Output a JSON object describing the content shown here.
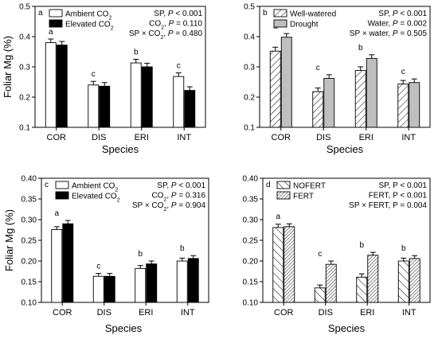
{
  "chart_data": [
    {
      "type": "bar",
      "panel": "a",
      "ylabel": "Foliar Mg (%)",
      "xlabel": "Species",
      "ylim": [
        0.1,
        0.5
      ],
      "yticks": [
        "0.1",
        "0.2",
        "0.3",
        "0.4",
        "0.5"
      ],
      "categories": [
        "COR",
        "DIS",
        "ERI",
        "INT"
      ],
      "series": [
        {
          "name": "Ambient CO",
          "sub": "2",
          "fill": "white",
          "values": [
            0.38,
            0.24,
            0.313,
            0.268
          ],
          "errors": [
            0.012,
            0.012,
            0.012,
            0.012
          ]
        },
        {
          "name": "Elevated CO",
          "sub": "2",
          "fill": "black",
          "values": [
            0.372,
            0.236,
            0.3,
            0.222
          ],
          "errors": [
            0.012,
            0.012,
            0.012,
            0.012
          ]
        }
      ],
      "letters": [
        "a",
        "c",
        "b",
        "c"
      ],
      "legend_position": "top-left",
      "stats": [
        {
          "pre": "SP, ",
          "it": "P",
          "post": " < 0.001"
        },
        {
          "pre": "CO",
          "sub": "2",
          "pre2": ", ",
          "it": "P",
          "post": " = 0.110"
        },
        {
          "pre": "SP × CO",
          "sub": "2",
          "pre2": ", ",
          "it": "P",
          "post": " = 0.480"
        }
      ]
    },
    {
      "type": "bar",
      "panel": "b",
      "ylabel": "",
      "xlabel": "Species",
      "ylim": [
        0.1,
        0.5
      ],
      "yticks": [
        "0.1",
        "0.2",
        "0.3",
        "0.4",
        "0.5"
      ],
      "categories": [
        "COR",
        "DIS",
        "ERI",
        "INT"
      ],
      "series": [
        {
          "name": "Well-watered",
          "sub": "",
          "fill": "hatch",
          "values": [
            0.352,
            0.218,
            0.288,
            0.243
          ],
          "errors": [
            0.013,
            0.012,
            0.012,
            0.012
          ]
        },
        {
          "name": "Drought",
          "sub": "",
          "fill": "gray",
          "values": [
            0.398,
            0.262,
            0.328,
            0.248
          ],
          "errors": [
            0.012,
            0.012,
            0.012,
            0.012
          ]
        }
      ],
      "letters": [
        "a",
        "c",
        "b",
        "c"
      ],
      "legend_position": "top-left",
      "stats": [
        {
          "pre": "SP, ",
          "it": "P",
          "post": " < 0.001"
        },
        {
          "pre": "Water, ",
          "it": "P",
          "post": " = 0.002"
        },
        {
          "pre": "SP × water, ",
          "it": "P",
          "post": " = 0.505"
        }
      ]
    },
    {
      "type": "bar",
      "panel": "c",
      "ylabel": "Foliar Mg (%)",
      "xlabel": "Species",
      "ylim": [
        0.1,
        0.4
      ],
      "yticks": [
        "0.10",
        "0.15",
        "0.20",
        "0.25",
        "0.30",
        "0.35",
        "0.40"
      ],
      "categories": [
        "COR",
        "DIS",
        "ERI",
        "INT"
      ],
      "series": [
        {
          "name": "Ambient CO",
          "sub": "2",
          "fill": "white",
          "values": [
            0.276,
            0.163,
            0.182,
            0.2
          ],
          "errors": [
            0.007,
            0.007,
            0.007,
            0.007
          ]
        },
        {
          "name": "Elevated CO",
          "sub": "2",
          "fill": "black",
          "values": [
            0.29,
            0.163,
            0.193,
            0.206
          ],
          "errors": [
            0.008,
            0.007,
            0.007,
            0.007
          ]
        }
      ],
      "letters": [
        "a",
        "c",
        "b",
        "b"
      ],
      "legend_position": "top-left",
      "stats": [
        {
          "pre": "SP, ",
          "it": "P",
          "post": " < 0.001"
        },
        {
          "pre": "CO",
          "sub": "2",
          "pre2": ", ",
          "it": "P",
          "post": " = 0.316"
        },
        {
          "pre": "SP × CO",
          "sub": "2",
          "pre2": ", ",
          "it": "P",
          "post": " = 0.904"
        }
      ]
    },
    {
      "type": "bar",
      "panel": "d",
      "ylabel": "",
      "xlabel": "Species",
      "ylim": [
        0.1,
        0.4
      ],
      "yticks": [
        "0.10",
        "0.15",
        "0.20",
        "0.25",
        "0.30",
        "0.35",
        "0.40"
      ],
      "categories": [
        "COR",
        "DIS",
        "ERI",
        "INT"
      ],
      "series": [
        {
          "name": "NOFERT",
          "sub": "",
          "fill": "hatch-back",
          "values": [
            0.281,
            0.135,
            0.161,
            0.2
          ],
          "errors": [
            0.008,
            0.007,
            0.008,
            0.007
          ]
        },
        {
          "name": "FERT",
          "sub": "",
          "fill": "hatch-fine",
          "values": [
            0.283,
            0.192,
            0.214,
            0.206
          ],
          "errors": [
            0.007,
            0.008,
            0.007,
            0.007
          ]
        }
      ],
      "letters": [
        "a",
        "c",
        "b",
        "b"
      ],
      "legend_position": "top-left",
      "stats": [
        {
          "pre": "SP, P < 0.001",
          "it": "",
          "post": ""
        },
        {
          "pre": "FERT, P < 0.001",
          "it": "",
          "post": ""
        },
        {
          "pre": "SP × FERT, P = 0.004",
          "it": "",
          "post": ""
        }
      ]
    }
  ]
}
